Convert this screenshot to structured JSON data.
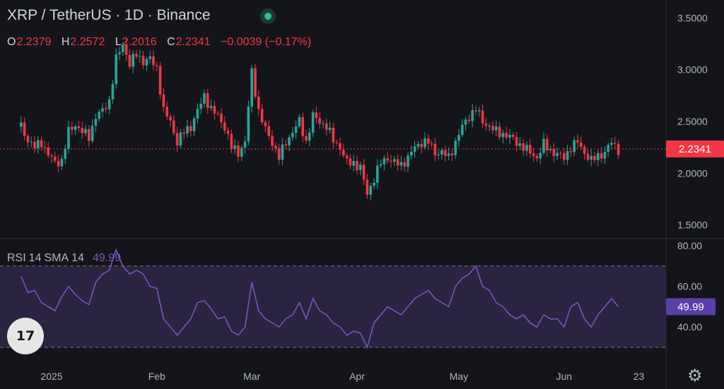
{
  "header": {
    "title": "XRP / TetherUS · 1D · Binance",
    "ohlc": [
      {
        "key": "O",
        "value": "2.2379"
      },
      {
        "key": "H",
        "value": "2.2572"
      },
      {
        "key": "L",
        "value": "2.2016"
      },
      {
        "key": "C",
        "value": "2.2341"
      }
    ],
    "change": "−0.0039 (−0.17%)"
  },
  "rsi_legend": {
    "name": "RSI",
    "length": "14",
    "ma": "SMA",
    "ma_length": "14",
    "value": "49.99"
  },
  "logo_text": "17",
  "icons": {
    "status": "status-dot-icon",
    "settings": "gear-icon",
    "logo": "tradingview-logo"
  },
  "colors": {
    "up": "#26a69a",
    "down": "#f23645",
    "rsi": "#7e57c2",
    "rsi_band": "#2a2440",
    "price_tag_bg": "#f23645",
    "rsi_tag_bg": "#5b3fa6"
  },
  "chart_data": [
    {
      "type": "candlestick",
      "title": "XRP / TetherUS · 1D · Binance",
      "x_tick_labels": [
        "2025",
        "Feb",
        "Mar",
        "Apr",
        "May",
        "Jun",
        "23"
      ],
      "x_tick_days": [
        0,
        31,
        59,
        90,
        120,
        151,
        173
      ],
      "y_tick_labels": [
        "3.5000",
        "3.0000",
        "2.5000",
        "2.0000",
        "1.5000"
      ],
      "y_ticks": [
        3.5,
        3.0,
        2.5,
        2.0,
        1.5
      ],
      "ylim": [
        1.45,
        3.55
      ],
      "last_price_label": "2.2341",
      "last_price": 2.2341,
      "close_path": {
        "days": [
          -9,
          -7,
          -5,
          -3,
          -1,
          1,
          3,
          5,
          7,
          9,
          11,
          13,
          15,
          17,
          19,
          21,
          23,
          25,
          27,
          29,
          31,
          33,
          35,
          37,
          39,
          41,
          43,
          45,
          47,
          49,
          51,
          53,
          55,
          57,
          59,
          61,
          63,
          65,
          67,
          69,
          71,
          73,
          75,
          77,
          79,
          81,
          83,
          85,
          87,
          89,
          91,
          93,
          95,
          97,
          99,
          101,
          103,
          105,
          107,
          109,
          111,
          113,
          115,
          117,
          119,
          121,
          123,
          125,
          127,
          129,
          131,
          133,
          135,
          137,
          139,
          141,
          143,
          145,
          147,
          149,
          151,
          153,
          155,
          157,
          159,
          161,
          163,
          165,
          167
        ],
        "closes": [
          2.45,
          2.32,
          2.25,
          2.3,
          2.18,
          2.1,
          2.12,
          2.4,
          2.47,
          2.4,
          2.35,
          2.55,
          2.6,
          2.7,
          3.1,
          3.25,
          3.05,
          3.15,
          3.08,
          3.1,
          3.02,
          2.6,
          2.5,
          2.3,
          2.4,
          2.45,
          2.6,
          2.75,
          2.62,
          2.55,
          2.45,
          2.25,
          2.2,
          2.3,
          2.98,
          2.6,
          2.42,
          2.3,
          2.15,
          2.3,
          2.4,
          2.5,
          2.3,
          2.55,
          2.5,
          2.45,
          2.32,
          2.25,
          2.1,
          2.1,
          2.05,
          1.8,
          1.95,
          2.1,
          2.15,
          2.1,
          2.08,
          2.15,
          2.25,
          2.3,
          2.3,
          2.2,
          2.2,
          2.15,
          2.3,
          2.45,
          2.55,
          2.62,
          2.5,
          2.45,
          2.4,
          2.38,
          2.35,
          2.3,
          2.25,
          2.2,
          2.15,
          2.28,
          2.22,
          2.18,
          2.15,
          2.25,
          2.3,
          2.2,
          2.12,
          2.17,
          2.2,
          2.3,
          2.23
        ]
      }
    },
    {
      "type": "line",
      "title": "RSI 14 SMA 14",
      "y_tick_labels": [
        "80.00",
        "60.00",
        "40.00"
      ],
      "y_ticks": [
        80,
        60,
        40
      ],
      "ylim": [
        30,
        80
      ],
      "band": [
        30,
        70
      ],
      "last_value_label": "49.99",
      "series": [
        {
          "name": "RSI",
          "days": [
            -9,
            -7,
            -5,
            -3,
            -1,
            1,
            3,
            5,
            7,
            9,
            11,
            13,
            15,
            17,
            19,
            21,
            23,
            25,
            27,
            29,
            31,
            33,
            35,
            37,
            39,
            41,
            43,
            45,
            47,
            49,
            51,
            53,
            55,
            57,
            59,
            61,
            63,
            65,
            67,
            69,
            71,
            73,
            75,
            77,
            79,
            81,
            83,
            85,
            87,
            89,
            91,
            93,
            95,
            97,
            99,
            101,
            103,
            105,
            107,
            109,
            111,
            113,
            115,
            117,
            119,
            121,
            123,
            125,
            127,
            129,
            131,
            133,
            135,
            137,
            139,
            141,
            143,
            145,
            147,
            149,
            151,
            153,
            155,
            157,
            159,
            161,
            163,
            165,
            167
          ],
          "values": [
            65,
            57,
            58,
            52,
            50,
            48,
            55,
            60,
            56,
            53,
            51,
            62,
            66,
            68,
            78,
            70,
            66,
            68,
            66,
            60,
            59,
            44,
            40,
            36,
            40,
            44,
            52,
            53,
            49,
            44,
            45,
            38,
            36,
            40,
            62,
            48,
            44,
            42,
            40,
            44,
            46,
            52,
            44,
            54,
            48,
            46,
            42,
            40,
            36,
            38,
            37,
            30,
            42,
            46,
            50,
            48,
            46,
            50,
            54,
            56,
            58,
            54,
            52,
            50,
            60,
            64,
            66,
            70,
            60,
            58,
            52,
            50,
            46,
            44,
            46,
            42,
            40,
            46,
            44,
            44,
            40,
            50,
            52,
            44,
            40,
            46,
            50,
            54,
            50
          ]
        }
      ]
    }
  ]
}
